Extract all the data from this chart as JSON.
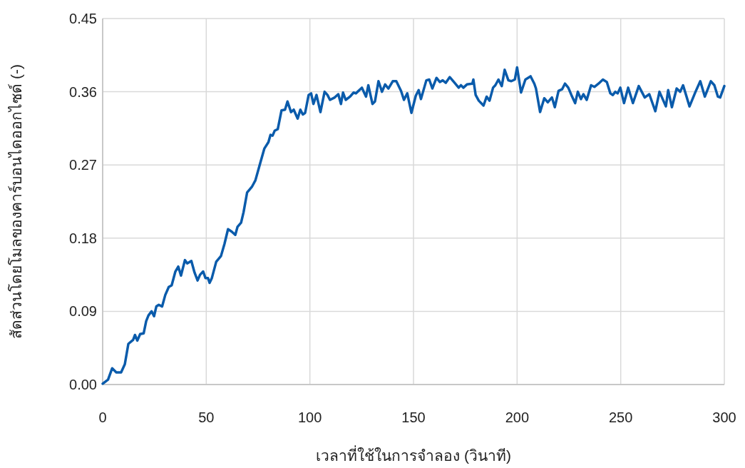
{
  "chart_data": {
    "type": "line",
    "xlabel": "เวลาที่ใช้ในการจำลอง (วินาที)",
    "ylabel": "สัดส่วนโดยโมลของคาร์บอนไดออกไซด์ (-)",
    "xlim": [
      0,
      300
    ],
    "xticks": [
      0,
      50,
      100,
      150,
      200,
      250,
      300
    ],
    "ylim": [
      0,
      0.45
    ],
    "yticks": [
      {
        "value": 0,
        "label": "0.00"
      },
      {
        "value": 0.09,
        "label": "0.09"
      },
      {
        "value": 0.18,
        "label": "0.18"
      },
      {
        "value": 0.27,
        "label": "0.27"
      },
      {
        "value": 0.36,
        "label": "0.36"
      },
      {
        "value": 0.45,
        "label": "0.45"
      }
    ],
    "grid": true,
    "marker": "none",
    "line_style": "solid",
    "series": [
      {
        "color": "#0a5bab",
        "x": [
          0,
          2.6,
          4.6,
          6.6,
          8.9,
          10.7,
          12.4,
          14.7,
          15.6,
          16.7,
          18.1,
          19.8,
          21.0,
          22.1,
          23.6,
          24.8,
          25.9,
          27.1,
          28.7,
          30.2,
          31.9,
          33.3,
          35.1,
          36.5,
          37.8,
          39.7,
          40.8,
          42.8,
          44.3,
          45.8,
          47.0,
          48.5,
          49.6,
          50.8,
          51.6,
          52.7,
          54.8,
          57.1,
          58.8,
          60.5,
          62.3,
          64.0,
          65.1,
          66.8,
          68.0,
          69.7,
          72.0,
          73.7,
          76.0,
          78.0,
          80.0,
          81.0,
          82.0,
          83.0,
          84.5,
          86.3,
          88.0,
          89.2,
          90.9,
          92.2,
          94.1,
          95.4,
          96.6,
          97.7,
          99.4,
          100.6,
          101.7,
          103.2,
          105.1,
          107.1,
          108.5,
          109.7,
          112.0,
          113.7,
          115.0,
          116.0,
          117.3,
          119.4,
          121.1,
          122.2,
          125.1,
          127.1,
          128.2,
          130.2,
          131.4,
          133.1,
          134.8,
          136.3,
          137.9,
          140.0,
          141.7,
          144.0,
          145.4,
          147.0,
          149.0,
          151.1,
          152.5,
          153.6,
          156.2,
          157.6,
          159.1,
          161.1,
          162.7,
          164.1,
          165.6,
          167.5,
          169.5,
          171.8,
          172.9,
          174.1,
          175.8,
          178.4,
          178.9,
          180.0,
          181.5,
          183.8,
          185.3,
          186.7,
          188.4,
          189.5,
          191.0,
          192.6,
          194.0,
          195.8,
          197.2,
          198.9,
          200.0,
          201.9,
          204.0,
          206.5,
          208.3,
          209.1,
          211.1,
          213.1,
          214.8,
          216.8,
          218.2,
          220.0,
          221.7,
          223.1,
          224.7,
          226.2,
          228.0,
          229.3,
          230.8,
          232.0,
          233.6,
          235.7,
          237.3,
          239.3,
          241.4,
          243.3,
          245.0,
          246.2,
          247.4,
          248.5,
          249.8,
          251.6,
          253.6,
          255.9,
          258.7,
          261.6,
          263.8,
          266.7,
          268.7,
          271.8,
          272.9,
          274.7,
          277.0,
          278.7,
          280.1,
          283.2,
          286.1,
          288.4,
          290.6,
          293.5,
          295.2,
          296.9,
          298.0,
          300.0
        ],
        "values": [
          0.001,
          0.006,
          0.02,
          0.015,
          0.015,
          0.025,
          0.05,
          0.055,
          0.061,
          0.054,
          0.062,
          0.063,
          0.078,
          0.085,
          0.09,
          0.084,
          0.096,
          0.098,
          0.096,
          0.11,
          0.12,
          0.122,
          0.139,
          0.145,
          0.134,
          0.153,
          0.149,
          0.152,
          0.138,
          0.128,
          0.135,
          0.139,
          0.131,
          0.131,
          0.125,
          0.131,
          0.151,
          0.158,
          0.173,
          0.191,
          0.188,
          0.184,
          0.194,
          0.199,
          0.212,
          0.236,
          0.243,
          0.251,
          0.272,
          0.29,
          0.298,
          0.307,
          0.306,
          0.312,
          0.314,
          0.337,
          0.338,
          0.348,
          0.335,
          0.338,
          0.327,
          0.338,
          0.332,
          0.334,
          0.356,
          0.358,
          0.345,
          0.356,
          0.335,
          0.36,
          0.356,
          0.35,
          0.353,
          0.357,
          0.345,
          0.359,
          0.35,
          0.354,
          0.359,
          0.358,
          0.365,
          0.354,
          0.368,
          0.345,
          0.348,
          0.373,
          0.36,
          0.369,
          0.364,
          0.373,
          0.373,
          0.361,
          0.35,
          0.358,
          0.334,
          0.355,
          0.362,
          0.351,
          0.374,
          0.375,
          0.364,
          0.377,
          0.372,
          0.374,
          0.371,
          0.378,
          0.372,
          0.365,
          0.368,
          0.365,
          0.369,
          0.37,
          0.375,
          0.356,
          0.349,
          0.343,
          0.354,
          0.349,
          0.365,
          0.368,
          0.375,
          0.367,
          0.387,
          0.374,
          0.373,
          0.375,
          0.39,
          0.359,
          0.375,
          0.379,
          0.37,
          0.364,
          0.335,
          0.352,
          0.347,
          0.353,
          0.341,
          0.361,
          0.363,
          0.37,
          0.365,
          0.356,
          0.346,
          0.36,
          0.351,
          0.357,
          0.35,
          0.368,
          0.366,
          0.37,
          0.375,
          0.372,
          0.358,
          0.356,
          0.36,
          0.358,
          0.365,
          0.346,
          0.365,
          0.346,
          0.367,
          0.353,
          0.357,
          0.336,
          0.36,
          0.342,
          0.362,
          0.341,
          0.364,
          0.36,
          0.368,
          0.342,
          0.36,
          0.373,
          0.354,
          0.373,
          0.368,
          0.354,
          0.353,
          0.367
        ]
      }
    ]
  }
}
